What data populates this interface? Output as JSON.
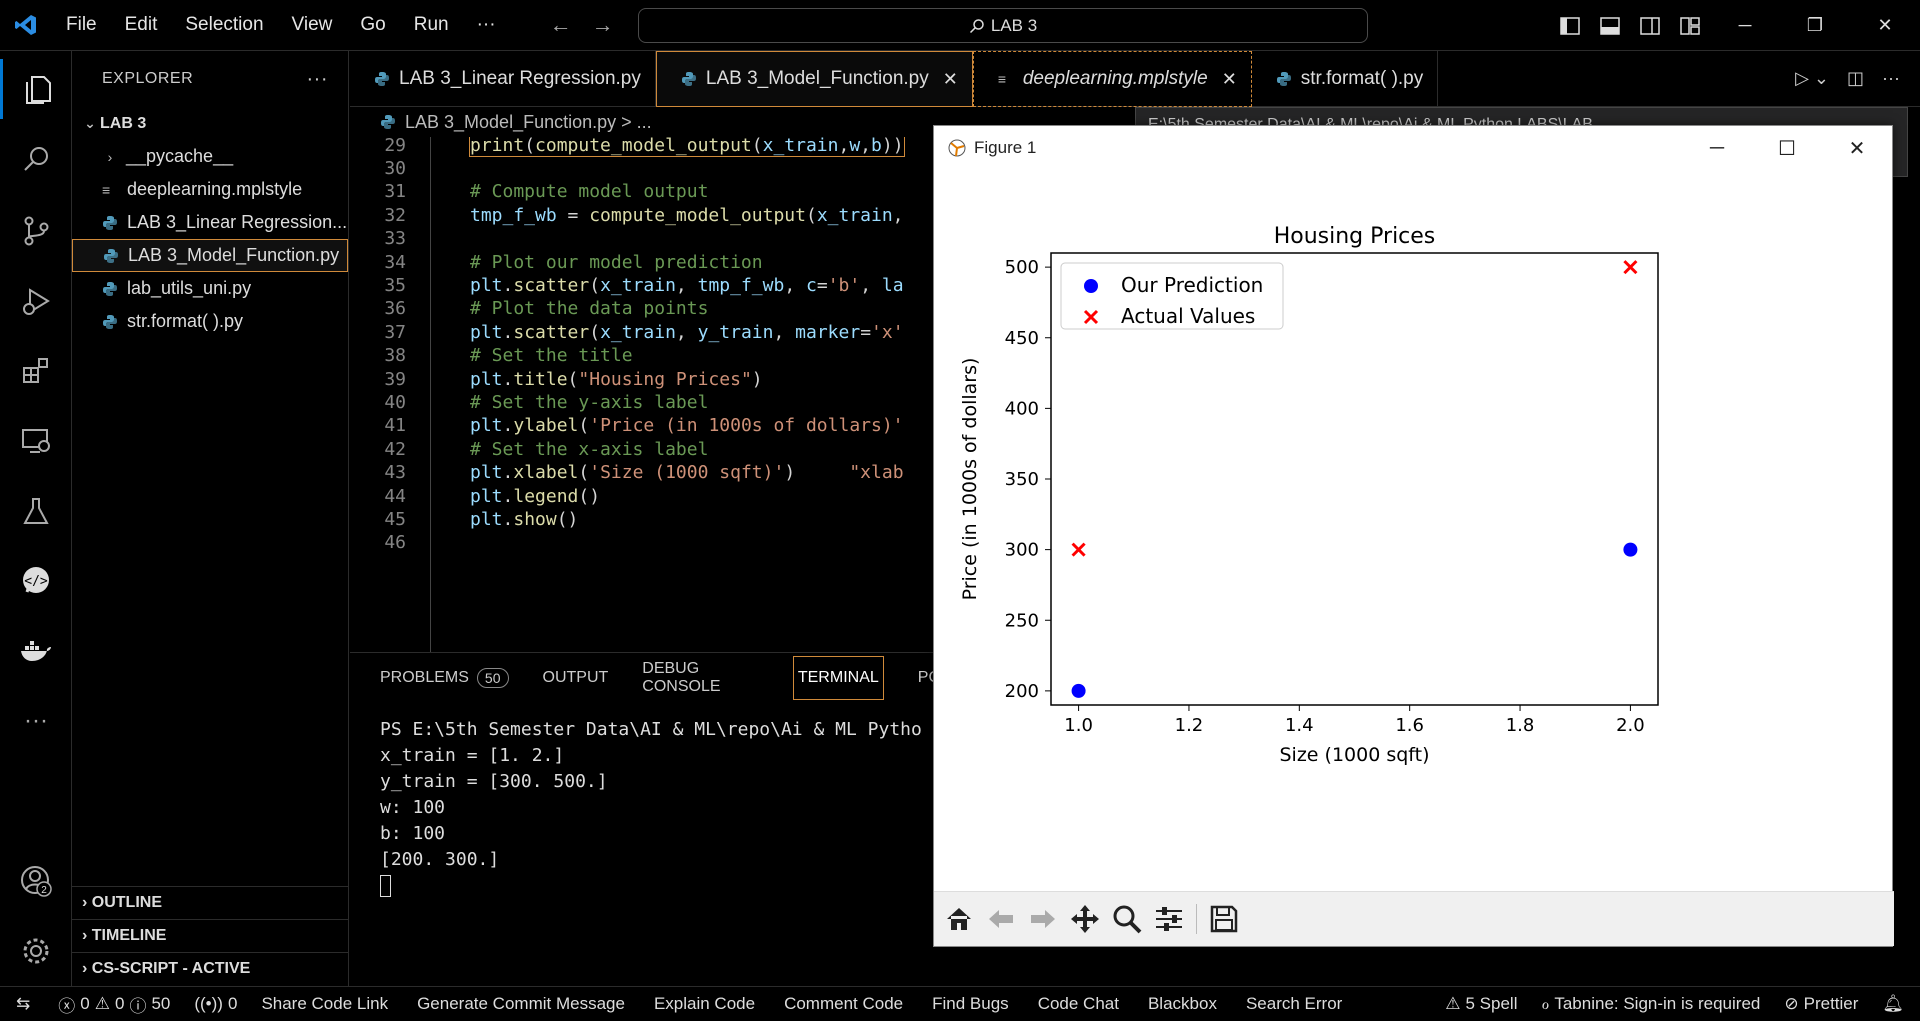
{
  "titlebar": {
    "menus": [
      "File",
      "Edit",
      "Selection",
      "View",
      "Go",
      "Run",
      "···"
    ],
    "search_text": "LAB 3"
  },
  "sidebar": {
    "header": "EXPLORER",
    "folder": "LAB 3",
    "items": [
      {
        "label": "__pycache__",
        "type": "folder"
      },
      {
        "label": "deeplearning.mplstyle",
        "type": "style"
      },
      {
        "label": "LAB 3_Linear Regression...",
        "type": "py"
      },
      {
        "label": "LAB 3_Model_Function.py",
        "type": "py",
        "selected": true
      },
      {
        "label": "lab_utils_uni.py",
        "type": "py"
      },
      {
        "label": "str.format( ).py",
        "type": "py"
      }
    ],
    "sections": [
      "OUTLINE",
      "TIMELINE",
      "CS-SCRIPT - ACTIVE"
    ]
  },
  "tabs": [
    {
      "label": "LAB 3_Linear Regression.py",
      "state": "normal"
    },
    {
      "label": "LAB 3_Model_Function.py",
      "state": "active"
    },
    {
      "label": "deeplearning.mplstyle",
      "state": "preview"
    },
    {
      "label": "str.format( ).py",
      "state": "normal"
    }
  ],
  "breadcrumb": "LAB 3_Model_Function.py > ...",
  "hover_text": "E:\\5th Semester Data\\AI & ML\\repo\\Ai & ML Python LABS\\LAB",
  "editor": {
    "lines": [
      {
        "n": "29",
        "html": "<span class='c-fn'>print</span><span class='c-p'>(</span><span class='c-fn'>compute_model_output</span><span class='c-p'>(</span><span class='c-var'>x_train</span><span class='c-p'>,</span><span class='c-var'>w</span><span class='c-p'>,</span><span class='c-var'>b</span><span class='c-p'>))</span>"
      },
      {
        "n": "30",
        "html": ""
      },
      {
        "n": "31",
        "html": "<span class='c-com'># Compute model output</span>"
      },
      {
        "n": "32",
        "html": "<span class='c-var'>tmp_f_wb</span><span class='c-p'> = </span><span class='c-fn'>compute_model_output</span><span class='c-p'>(</span><span class='c-var'>x_train</span><span class='c-p'>,</span>"
      },
      {
        "n": "33",
        "html": ""
      },
      {
        "n": "34",
        "html": "<span class='c-com'># Plot our model prediction</span>"
      },
      {
        "n": "35",
        "html": "<span class='c-var'>plt</span><span class='c-p'>.</span><span class='c-fn'>scatter</span><span class='c-p'>(</span><span class='c-var'>x_train</span><span class='c-p'>, </span><span class='c-var'>tmp_f_wb</span><span class='c-p'>, </span><span class='c-var'>c</span><span class='c-p'>=</span><span class='c-str'>'b'</span><span class='c-p'>, </span><span class='c-var'>la</span>"
      },
      {
        "n": "36",
        "html": "<span class='c-com'># Plot the data points</span>"
      },
      {
        "n": "37",
        "html": "<span class='c-var'>plt</span><span class='c-p'>.</span><span class='c-fn'>scatter</span><span class='c-p'>(</span><span class='c-var'>x_train</span><span class='c-p'>, </span><span class='c-var'>y_train</span><span class='c-p'>, </span><span class='c-var'>marker</span><span class='c-p'>=</span><span class='c-str'>'x'</span>"
      },
      {
        "n": "38",
        "html": "<span class='c-com'># Set the title</span>"
      },
      {
        "n": "39",
        "html": "<span class='c-var'>plt</span><span class='c-p'>.</span><span class='c-fn'>title</span><span class='c-p'>(</span><span class='c-str'>\"Housing Prices\"</span><span class='c-p'>)</span>"
      },
      {
        "n": "40",
        "html": "<span class='c-com'># Set the y-axis label</span>"
      },
      {
        "n": "41",
        "html": "<span class='c-var'>plt</span><span class='c-p'>.</span><span class='c-fn'>ylabel</span><span class='c-p'>(</span><span class='c-str'>'Price (in 1000s of dollars)'</span>"
      },
      {
        "n": "42",
        "html": "<span class='c-com'># Set the x-axis label</span>"
      },
      {
        "n": "43",
        "html": "<span class='c-var'>plt</span><span class='c-p'>.</span><span class='c-fn'>xlabel</span><span class='c-p'>(</span><span class='c-str'>'Size (1000 sqft)'</span><span class='c-p'>)</span><span class='c-str'>     \"xlab</span>"
      },
      {
        "n": "44",
        "html": "<span class='c-var'>plt</span><span class='c-p'>.</span><span class='c-fn'>legend</span><span class='c-p'>()</span>"
      },
      {
        "n": "45",
        "html": "<span class='c-var'>plt</span><span class='c-p'>.</span><span class='c-fn'>show</span><span class='c-p'>()</span>"
      },
      {
        "n": "46",
        "html": ""
      }
    ]
  },
  "panel": {
    "tabs": [
      "PROBLEMS",
      "OUTPUT",
      "DEBUG CONSOLE",
      "TERMINAL",
      "PC"
    ],
    "problems_count": "50",
    "terminal_lines": [
      "PS E:\\5th Semester Data\\AI & ML\\repo\\Ai & ML Pytho",
      "x_train = [1. 2.]",
      "y_train = [300. 500.]",
      "w: 100",
      "b: 100",
      "[200. 300.]"
    ]
  },
  "figure": {
    "window_title": "Figure 1"
  },
  "chart_data": {
    "type": "scatter",
    "title": "Housing Prices",
    "xlabel": "Size (1000 sqft)",
    "ylabel": "Price (in 1000s of dollars)",
    "xlim": [
      0.95,
      2.05
    ],
    "ylim": [
      190,
      510
    ],
    "xticks": [
      "1.0",
      "1.2",
      "1.4",
      "1.6",
      "1.8",
      "2.0"
    ],
    "yticks": [
      "200",
      "250",
      "300",
      "350",
      "400",
      "450",
      "500"
    ],
    "legend_position": "top-left",
    "series": [
      {
        "name": "Our Prediction",
        "marker": "o",
        "color": "#0000ff",
        "x": [
          1.0,
          2.0
        ],
        "y": [
          200,
          300
        ]
      },
      {
        "name": "Actual Values",
        "marker": "x",
        "color": "#ff0000",
        "x": [
          1.0,
          2.0
        ],
        "y": [
          300,
          500
        ]
      }
    ]
  },
  "statusbar": {
    "errors": "0",
    "warnings": "0",
    "infos": "50",
    "ports": "0",
    "items": [
      "Share Code Link",
      "Generate Commit Message",
      "Explain Code",
      "Comment Code",
      "Find Bugs",
      "Code Chat",
      "Blackbox",
      "Search Error"
    ],
    "spell": "5 Spell",
    "tabnine": "Tabnine: Sign-in is required",
    "prettier": "Prettier"
  },
  "accounts_badge": "2"
}
